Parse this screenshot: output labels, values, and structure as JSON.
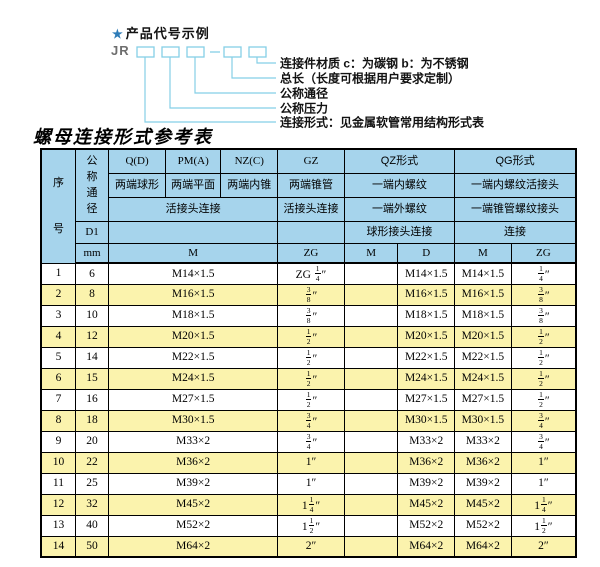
{
  "diagram": {
    "star": "★",
    "title": "产品代号示例",
    "prefix": "JR",
    "labels": [
      "连接件材质  c：为碳钢  b：为不锈钢",
      "总长（长度可根据用户要求定制）",
      "公称通径",
      "公称压力",
      "连接形式：见金属软管常用结构形式表"
    ],
    "line_color": "#85cfe6",
    "star_color": "#2e7cb8"
  },
  "table": {
    "title": "螺母连接形式参考表",
    "colors": {
      "header_bg": "#a6d4ec",
      "row_alt_bg": "#fbf3ad",
      "border": "#000000"
    },
    "header": {
      "serial": "序号",
      "nominal_diameter": "公称通径",
      "d1": "D1",
      "mm": "mm",
      "col_q": "Q(D)",
      "col_pm": "PM(A)",
      "col_nz": "NZ(C)",
      "col_gz": "GZ",
      "col_qz": "QZ形式",
      "col_qg": "QG形式",
      "q_sub": "两端球形",
      "pm_sub": "两端平面",
      "nz_sub": "两端内锥",
      "gz_sub": "两端锥管",
      "qz_sub1": "一端内螺纹",
      "qg_sub1": "一端内螺纹活接头",
      "union_conn": "活接头连接",
      "gz_conn": "活接头连接",
      "qz_sub2": "一端外螺纹",
      "qg_sub2": "一端锥管螺纹接头",
      "qz_conn": "球形接头连接",
      "qg_conn": "连接",
      "m_label": "M",
      "gz_zg_label": "ZG",
      "qz_m_label": "M",
      "qz_d_label": "D",
      "qg_m_label": "M",
      "qg_zg_label": "ZG"
    },
    "rows": [
      [
        "1",
        "6",
        "M14×1.5",
        "ZG {1/4}″",
        "",
        "M14×1.5",
        "M14×1.5",
        "{1/4}″"
      ],
      [
        "2",
        "8",
        "M16×1.5",
        "{3/8}″",
        "",
        "M16×1.5",
        "M16×1.5",
        "{3/8}″"
      ],
      [
        "3",
        "10",
        "M18×1.5",
        "{3/8}″",
        "",
        "M18×1.5",
        "M18×1.5",
        "{3/8}″"
      ],
      [
        "4",
        "12",
        "M20×1.5",
        "{1/2}″",
        "",
        "M20×1.5",
        "M20×1.5",
        "{1/2}″"
      ],
      [
        "5",
        "14",
        "M22×1.5",
        "{1/2}″",
        "",
        "M22×1.5",
        "M22×1.5",
        "{1/2}″"
      ],
      [
        "6",
        "15",
        "M24×1.5",
        "{1/2}″",
        "",
        "M24×1.5",
        "M24×1.5",
        "{1/2}″"
      ],
      [
        "7",
        "16",
        "M27×1.5",
        "{1/2}″",
        "",
        "M27×1.5",
        "M27×1.5",
        "{1/2}″"
      ],
      [
        "8",
        "18",
        "M30×1.5",
        "{3/4}″",
        "",
        "M30×1.5",
        "M30×1.5",
        "{3/4}″"
      ],
      [
        "9",
        "20",
        "M33×2",
        "{3/4}″",
        "",
        "M33×2",
        "M33×2",
        "{3/4}″"
      ],
      [
        "10",
        "22",
        "M36×2",
        "1″",
        "",
        "M36×2",
        "M36×2",
        "1″"
      ],
      [
        "11",
        "25",
        "M39×2",
        "1″",
        "",
        "M39×2",
        "M39×2",
        "1″"
      ],
      [
        "12",
        "32",
        "M45×2",
        "1{1/4}″",
        "",
        "M45×2",
        "M45×2",
        "1{1/4}″"
      ],
      [
        "13",
        "40",
        "M52×2",
        "1{1/2}″",
        "",
        "M52×2",
        "M52×2",
        "1{1/2}″"
      ],
      [
        "14",
        "50",
        "M64×2",
        "2″",
        "",
        "M64×2",
        "M64×2",
        "2″"
      ]
    ]
  }
}
